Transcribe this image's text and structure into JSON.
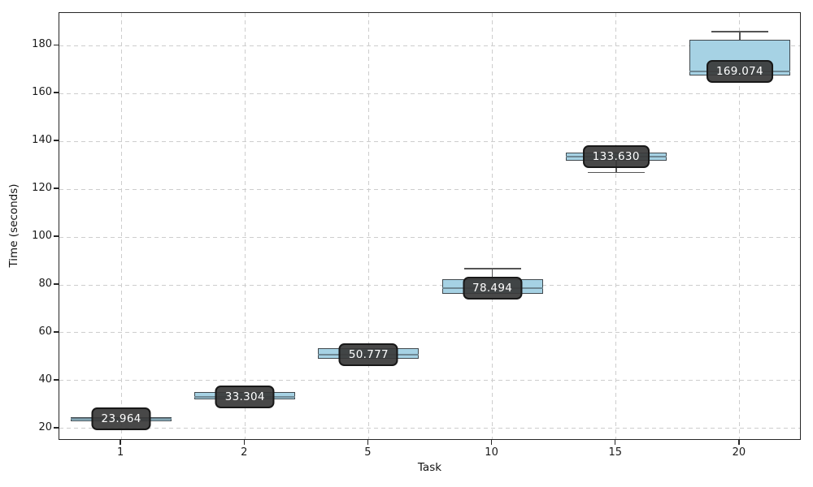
{
  "chart_data": {
    "type": "box",
    "title": "",
    "xlabel": "Task",
    "ylabel": "Time (seconds)",
    "categories": [
      "1",
      "2",
      "5",
      "10",
      "15",
      "20"
    ],
    "y_ticks": [
      20,
      40,
      60,
      80,
      100,
      120,
      140,
      160,
      180
    ],
    "ylim": [
      14.9,
      193.6
    ],
    "grid": "dashed both axes",
    "legend": "none",
    "boxes": [
      {
        "category": "1",
        "label": "23.964",
        "median": 23.964,
        "q1": 23.1,
        "q3": 24.9,
        "whisker_low": 23.1,
        "whisker_high": 24.9
      },
      {
        "category": "2",
        "label": "33.304",
        "median": 33.304,
        "q1": 32.3,
        "q3": 35.2,
        "whisker_low": 32.3,
        "whisker_high": 35.2
      },
      {
        "category": "5",
        "label": "50.777",
        "median": 50.777,
        "q1": 49.3,
        "q3": 53.5,
        "whisker_low": 49.3,
        "whisker_high": 53.5
      },
      {
        "category": "10",
        "label": "78.494",
        "median": 78.494,
        "q1": 76.3,
        "q3": 82.4,
        "whisker_low": 76.3,
        "whisker_high": 86.8
      },
      {
        "category": "15",
        "label": "133.630",
        "median": 133.63,
        "q1": 131.9,
        "q3": 135.3,
        "whisker_low": 127.0,
        "whisker_high": 135.3
      },
      {
        "category": "20",
        "label": "169.074",
        "median": 169.074,
        "q1": 167.5,
        "q3": 182.4,
        "whisker_low": 167.5,
        "whisker_high": 185.8
      }
    ],
    "colors": {
      "box_fill": "#a6d2e4",
      "box_edge": "#40484d",
      "median_line": "#6e8894",
      "whisker": "#555555",
      "grid": "#cdcdcd",
      "label_bg": "#383838",
      "label_text": "#ffffff",
      "axis": "#262626"
    }
  }
}
